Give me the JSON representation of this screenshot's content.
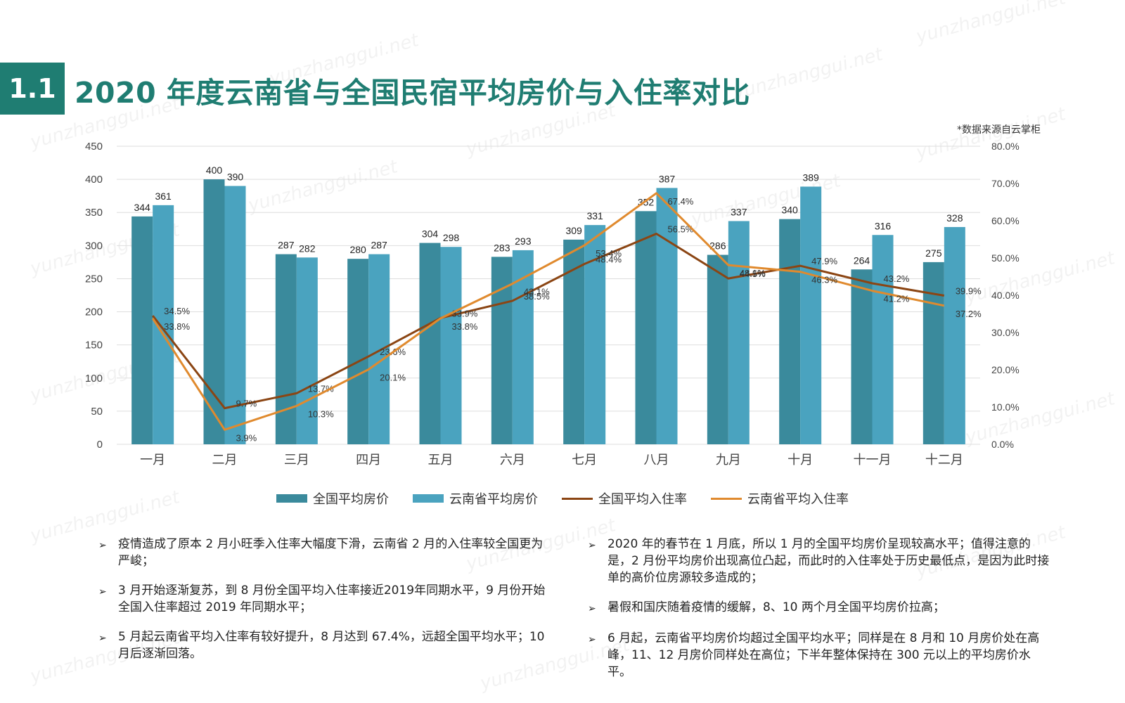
{
  "header": {
    "section_number": "1.1",
    "title": "2020 年度云南省与全国民宿平均房价与入住率对比",
    "source_note": "*数据来源自云掌柜"
  },
  "watermark_text": "yunzhanggui.net",
  "colors": {
    "accent": "#1f7d72",
    "national_price": "#3a8a9c",
    "yunnan_price": "#4aa3bf",
    "national_occupancy": "#8b4513",
    "yunnan_occupancy": "#e08a2e"
  },
  "chart_data": {
    "type": "bar",
    "categories": [
      "一月",
      "二月",
      "三月",
      "四月",
      "五月",
      "六月",
      "七月",
      "八月",
      "九月",
      "十月",
      "十一月",
      "十二月"
    ],
    "series": [
      {
        "name": "全国平均房价",
        "kind": "bar",
        "axis": "left",
        "values": [
          344,
          400,
          287,
          280,
          304,
          283,
          309,
          352,
          286,
          340,
          264,
          275
        ]
      },
      {
        "name": "云南省平均房价",
        "kind": "bar",
        "axis": "left",
        "values": [
          361,
          390,
          282,
          287,
          298,
          293,
          331,
          387,
          337,
          389,
          316,
          328
        ]
      },
      {
        "name": "全国平均入住率",
        "kind": "line",
        "axis": "right",
        "values": [
          34.5,
          9.7,
          13.7,
          23.6,
          33.9,
          38.5,
          48.4,
          56.5,
          44.5,
          47.9,
          43.2,
          39.9
        ],
        "labels": [
          "34.5%",
          "9.7%",
          "13.7%",
          "23.6%",
          "33.9%",
          "38.5%",
          "48.4%",
          "56.5%",
          "44.5%",
          "47.9%",
          "43.2%",
          "39.9%"
        ]
      },
      {
        "name": "云南省平均入住率",
        "kind": "line",
        "axis": "right",
        "values": [
          33.8,
          3.9,
          10.3,
          20.1,
          33.8,
          43.1,
          53.4,
          67.4,
          48.1,
          46.3,
          41.2,
          37.2
        ],
        "labels": [
          "33.8%",
          "3.9%",
          "10.3%",
          "20.1%",
          "33.8%",
          "43.1%",
          "53.4%",
          "67.4%",
          "48.1%",
          "46.3%",
          "41.2%",
          "37.2%"
        ]
      }
    ],
    "y_left": {
      "min": 0,
      "max": 450,
      "ticks": [
        "0",
        "50",
        "100",
        "150",
        "200",
        "250",
        "300",
        "350",
        "400",
        "450"
      ]
    },
    "y_right": {
      "min": 0,
      "max": 80,
      "ticks": [
        "0.0%",
        "10.0%",
        "20.0%",
        "30.0%",
        "40.0%",
        "50.0%",
        "60.0%",
        "70.0%",
        "80.0%"
      ]
    },
    "grid": true,
    "legend_position": "bottom"
  },
  "notes_left": [
    "疫情造成了原本 2 月小旺季入住率大幅度下滑，云南省 2 月的入住率较全国更为严峻；",
    "3 月开始逐渐复苏，到 8 月份全国平均入住率接近2019年同期水平，9 月份开始全国入住率超过 2019 年同期水平；",
    "5 月起云南省平均入住率有较好提升，8 月达到 67.4%，远超全国平均水平；10 月后逐渐回落。"
  ],
  "notes_right": [
    "2020 年的春节在 1 月底，所以 1 月的全国平均房价呈现较高水平；值得注意的是，2 月份平均房价出现高位凸起，而此时的入住率处于历史最低点，是因为此时接单的高价位房源较多造成的；",
    "暑假和国庆随着疫情的缓解，8、10 两个月全国平均房价拉高；",
    "6 月起，云南省平均房价均超过全国平均水平；同样是在 8 月和 10 月房价处在高峰，11、12 月房价同样处在高位；下半年整体保持在 300 元以上的平均房价水平。"
  ]
}
